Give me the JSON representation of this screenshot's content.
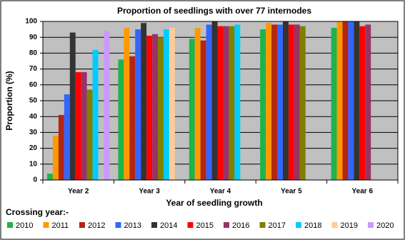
{
  "chart_data": {
    "type": "bar",
    "title": "Proportion of seedlings with over 77 internodes",
    "x_label": "Year of seedling growth",
    "y_label": "Proportion (%)",
    "legend_title": "Crossing year:-",
    "categories": [
      "Year 2",
      "Year 3",
      "Year 4",
      "Year 5",
      "Year 6"
    ],
    "series": [
      {
        "name": "2010",
        "color": "#1fb34a",
        "values": [
          4,
          76,
          89,
          95,
          96
        ]
      },
      {
        "name": "2011",
        "color": "#ff9900",
        "values": [
          28,
          96,
          96,
          99,
          100
        ]
      },
      {
        "name": "2012",
        "color": "#b3260f",
        "values": [
          41,
          78,
          88,
          98,
          100
        ]
      },
      {
        "name": "2013",
        "color": "#3366ff",
        "values": [
          54,
          95,
          98,
          98,
          100
        ]
      },
      {
        "name": "2014",
        "color": "#333333",
        "values": [
          93,
          99,
          100,
          100,
          100
        ]
      },
      {
        "name": "2015",
        "color": "#ff0000",
        "values": [
          68,
          91,
          97,
          98,
          97
        ]
      },
      {
        "name": "2016",
        "color": "#993366",
        "values": [
          68,
          92,
          97,
          98,
          98
        ]
      },
      {
        "name": "2017",
        "color": "#808000",
        "values": [
          57,
          90,
          97,
          97,
          null
        ]
      },
      {
        "name": "2018",
        "color": "#00ccff",
        "values": [
          82,
          95,
          98,
          null,
          null
        ]
      },
      {
        "name": "2019",
        "color": "#ffcc99",
        "values": [
          null,
          96,
          null,
          null,
          null
        ]
      },
      {
        "name": "2020",
        "color": "#cc99ff",
        "values": [
          94,
          null,
          null,
          null,
          null
        ]
      }
    ],
    "ylim": [
      0,
      100
    ],
    "yticks": [
      0,
      10,
      20,
      30,
      40,
      50,
      60,
      70,
      80,
      90,
      100
    ],
    "grid": true
  }
}
